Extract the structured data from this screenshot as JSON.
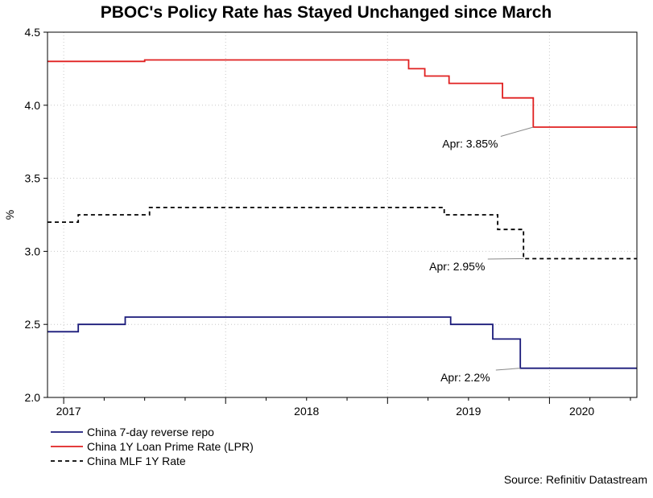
{
  "chart_data": {
    "type": "line",
    "title": "PBOC's Policy Rate has Stayed Unchanged since March",
    "ylabel": "%",
    "xlabel": "",
    "ylim": [
      2.0,
      4.5
    ],
    "yticks": [
      "2.0",
      "2.5",
      "3.0",
      "3.5",
      "4.0",
      "4.5"
    ],
    "x_range": [
      2016.9,
      2020.54
    ],
    "x_ticks": [
      {
        "label": "2017",
        "value": 2017.0
      },
      {
        "label": "2018",
        "value": 2018.0
      },
      {
        "label": "2019",
        "value": 2019.0
      },
      {
        "label": "2020",
        "value": 2020.0
      }
    ],
    "grid": true,
    "legend_position": "bottom-left",
    "series": [
      {
        "name": "China 7-day reverse repo",
        "color": "#1a1a7a",
        "style": "solid",
        "points": [
          [
            2016.9,
            2.45
          ],
          [
            2017.09,
            2.45
          ],
          [
            2017.09,
            2.5
          ],
          [
            2017.38,
            2.5
          ],
          [
            2017.38,
            2.55
          ],
          [
            2019.39,
            2.55
          ],
          [
            2019.39,
            2.5
          ],
          [
            2019.65,
            2.5
          ],
          [
            2019.65,
            2.4
          ],
          [
            2019.82,
            2.4
          ],
          [
            2019.82,
            2.2
          ],
          [
            2020.54,
            2.2
          ]
        ]
      },
      {
        "name": "China 1Y Loan Prime Rate (LPR)",
        "color": "#e02020",
        "style": "solid",
        "points": [
          [
            2016.9,
            4.3
          ],
          [
            2017.5,
            4.3
          ],
          [
            2017.5,
            4.31
          ],
          [
            2019.13,
            4.31
          ],
          [
            2019.13,
            4.25
          ],
          [
            2019.23,
            4.25
          ],
          [
            2019.23,
            4.2
          ],
          [
            2019.38,
            4.2
          ],
          [
            2019.38,
            4.15
          ],
          [
            2019.71,
            4.15
          ],
          [
            2019.71,
            4.05
          ],
          [
            2019.9,
            4.05
          ],
          [
            2019.9,
            3.85
          ],
          [
            2020.54,
            3.85
          ]
        ]
      },
      {
        "name": "China MLF 1Y Rate",
        "color": "#000000",
        "style": "dashed",
        "points": [
          [
            2016.9,
            3.2
          ],
          [
            2017.09,
            3.2
          ],
          [
            2017.09,
            3.25
          ],
          [
            2017.53,
            3.25
          ],
          [
            2017.53,
            3.3
          ],
          [
            2019.35,
            3.3
          ],
          [
            2019.35,
            3.25
          ],
          [
            2019.68,
            3.25
          ],
          [
            2019.68,
            3.15
          ],
          [
            2019.84,
            3.15
          ],
          [
            2019.84,
            2.95
          ],
          [
            2020.54,
            2.95
          ]
        ]
      }
    ],
    "annotations": [
      {
        "text": "Apr: 3.85%",
        "x": 2019.9,
        "y": 3.85,
        "label_x": 2019.51,
        "label_y": 3.71
      },
      {
        "text": "Apr: 2.95%",
        "x": 2019.84,
        "y": 2.95,
        "label_x": 2019.43,
        "label_y": 2.87
      },
      {
        "text": "Apr: 2.2%",
        "x": 2019.82,
        "y": 2.2,
        "label_x": 2019.48,
        "label_y": 2.11
      }
    ]
  },
  "source": "Source: Refinitiv Datastream"
}
